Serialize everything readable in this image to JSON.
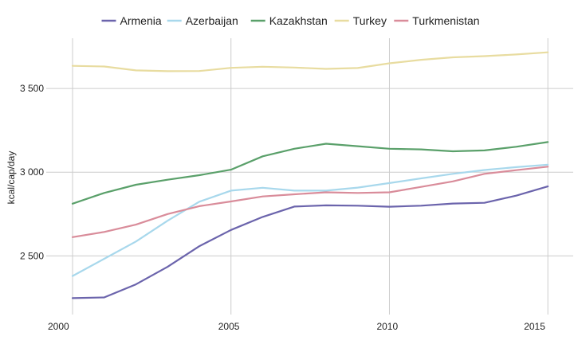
{
  "chart_data": {
    "type": "line",
    "title": "",
    "xlabel": "",
    "ylabel": "kcal/cap/day",
    "x": [
      2000,
      2001,
      2002,
      2003,
      2004,
      2005,
      2006,
      2007,
      2008,
      2009,
      2010,
      2011,
      2012,
      2013,
      2014,
      2015
    ],
    "xlim": [
      2000,
      2015.8
    ],
    "ylim": [
      2150,
      3800
    ],
    "x_ticks": [
      2000,
      2005,
      2010,
      2015
    ],
    "x_tick_labels": [
      "2000",
      "2005",
      "2010",
      "2015"
    ],
    "y_ticks": [
      2500,
      3000,
      3500
    ],
    "y_tick_labels": [
      "2 500",
      "3 000",
      "3 500"
    ],
    "grid": true,
    "legend_position": "top",
    "series": [
      {
        "name": "Armenia",
        "color": "#6b64ac",
        "values": [
          2248,
          2252,
          2330,
          2435,
          2558,
          2655,
          2733,
          2795,
          2802,
          2800,
          2794,
          2800,
          2813,
          2817,
          2860,
          2915
        ]
      },
      {
        "name": "Azerbaijan",
        "color": "#a8d8ec",
        "values": [
          2380,
          2483,
          2586,
          2710,
          2824,
          2890,
          2907,
          2890,
          2890,
          2908,
          2935,
          2963,
          2990,
          3013,
          3030,
          3045
        ]
      },
      {
        "name": "Kazakhstan",
        "color": "#5aa06a",
        "values": [
          2812,
          2876,
          2925,
          2955,
          2982,
          3015,
          3095,
          3140,
          3170,
          3155,
          3140,
          3136,
          3125,
          3130,
          3152,
          3180
        ]
      },
      {
        "name": "Turkey",
        "color": "#e8dca0",
        "values": [
          3635,
          3631,
          3608,
          3603,
          3604,
          3623,
          3630,
          3625,
          3617,
          3622,
          3650,
          3671,
          3686,
          3693,
          3703,
          3716
        ]
      },
      {
        "name": "Turkmenistan",
        "color": "#d98c9a",
        "values": [
          2612,
          2643,
          2687,
          2750,
          2797,
          2825,
          2855,
          2868,
          2880,
          2876,
          2880,
          2912,
          2945,
          2990,
          3012,
          3033
        ]
      }
    ]
  }
}
